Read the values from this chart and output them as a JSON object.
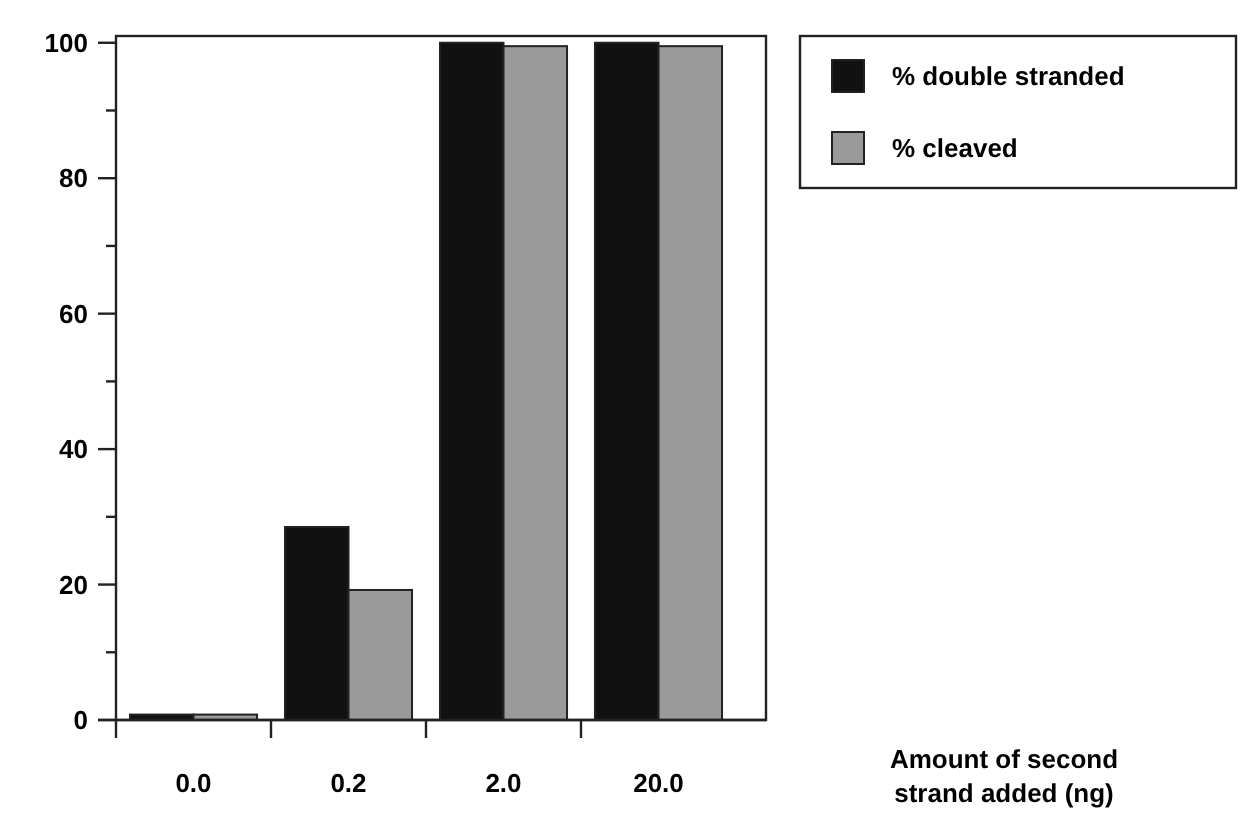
{
  "chart_data": {
    "type": "bar",
    "categories": [
      "0.0",
      "0.2",
      "2.0",
      "20.0"
    ],
    "series": [
      {
        "name": "% double stranded",
        "color": "#111111",
        "values": [
          0.8,
          28.5,
          100,
          100
        ]
      },
      {
        "name": "% cleaved",
        "color": "#9a9a9a",
        "values": [
          0.8,
          19.2,
          99.5,
          99.5
        ]
      }
    ],
    "xlabel": "Amount of second strand added (ng)",
    "ylim": [
      0,
      101
    ],
    "yticks": [
      0,
      {
        "value": 10,
        "label": null
      },
      20,
      {
        "value": 30,
        "label": null
      },
      40,
      {
        "value": 50,
        "label": null
      },
      60,
      {
        "value": 70,
        "label": null
      },
      80,
      {
        "value": 90,
        "label": null
      },
      100
    ],
    "legend": "top right",
    "grid": false
  }
}
